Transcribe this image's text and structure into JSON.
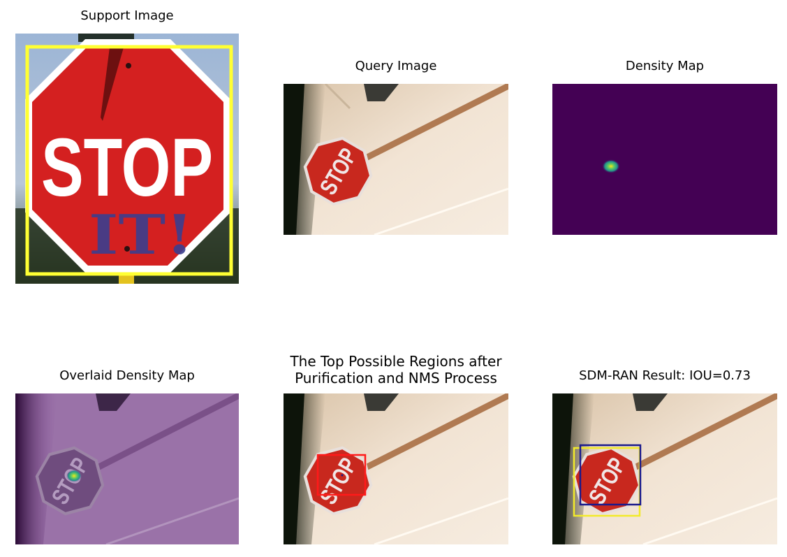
{
  "figure": {
    "panels": [
      {
        "title": "Support Image"
      },
      {
        "title": "Query Image"
      },
      {
        "title": "Density Map"
      },
      {
        "title": "Overlaid Density Map"
      },
      {
        "title": "The Top Possible Regions after Purification and NMS Process"
      },
      {
        "title": "SDM-RAN Result: IOU=0.73"
      }
    ],
    "sign_text": "STOP",
    "graffiti_text": "IT!",
    "colors": {
      "support_box": "#ffff33",
      "proposal_box": "#ff1a1a",
      "ground_truth_box": "#f2ea2a",
      "prediction_box": "#1a1a8c",
      "density_background": "#440154",
      "overlay_tint": "#8e5aa0"
    }
  }
}
